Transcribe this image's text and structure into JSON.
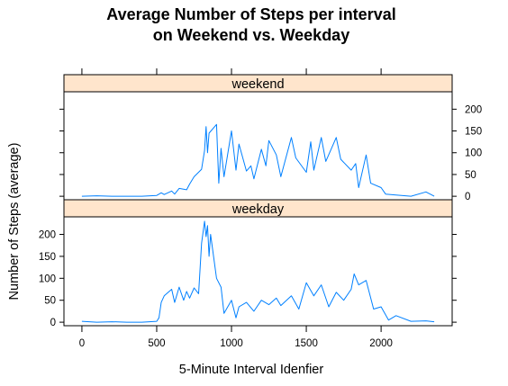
{
  "chart_data": {
    "type": "line",
    "title_line1": "Average Number of Steps per interval",
    "title_line2": "on Weekend vs. Weekday",
    "title": "Average Number of Steps per interval on Weekend vs. Weekday",
    "xlabel": "5-Minute Interval Idenfier",
    "ylabel": "Number of Steps (average)",
    "xlim": [
      -120,
      2475
    ],
    "ylim": [
      -8,
      240
    ],
    "x_ticks": [
      0,
      500,
      1000,
      1500,
      2000
    ],
    "y_ticks": [
      0,
      50,
      100,
      150,
      200
    ],
    "line_color": "#0080ff",
    "strip_color": "#ffe5cc",
    "panels": [
      {
        "strip_label": "weekend",
        "y_tick_side": "right",
        "x": [
          0,
          100,
          200,
          300,
          400,
          500,
          530,
          550,
          600,
          620,
          650,
          700,
          720,
          750,
          800,
          820,
          830,
          840,
          850,
          900,
          915,
          930,
          950,
          1000,
          1030,
          1050,
          1100,
          1130,
          1150,
          1200,
          1230,
          1250,
          1300,
          1330,
          1400,
          1430,
          1500,
          1530,
          1550,
          1600,
          1630,
          1700,
          1730,
          1800,
          1830,
          1850,
          1900,
          1930,
          2000,
          2030,
          2100,
          2200,
          2300,
          2355
        ],
        "y": [
          0,
          1,
          0,
          0,
          0,
          2,
          8,
          4,
          12,
          5,
          18,
          15,
          28,
          45,
          62,
          105,
          160,
          100,
          145,
          165,
          30,
          110,
          45,
          150,
          60,
          120,
          58,
          70,
          40,
          108,
          70,
          128,
          95,
          45,
          135,
          88,
          55,
          125,
          60,
          135,
          80,
          135,
          85,
          60,
          75,
          20,
          95,
          30,
          20,
          5,
          3,
          0,
          10,
          0
        ]
      },
      {
        "strip_label": "weekday",
        "y_tick_side": "left",
        "x": [
          0,
          100,
          200,
          300,
          400,
          500,
          515,
          530,
          550,
          600,
          620,
          650,
          680,
          700,
          720,
          750,
          780,
          800,
          820,
          830,
          840,
          850,
          860,
          900,
          930,
          950,
          1000,
          1030,
          1050,
          1100,
          1150,
          1200,
          1250,
          1300,
          1330,
          1400,
          1450,
          1500,
          1550,
          1600,
          1650,
          1700,
          1750,
          1800,
          1820,
          1850,
          1900,
          1950,
          2000,
          2050,
          2100,
          2200,
          2300,
          2355
        ],
        "y": [
          2,
          0,
          1,
          0,
          0,
          2,
          10,
          45,
          60,
          75,
          45,
          80,
          50,
          70,
          55,
          78,
          65,
          180,
          230,
          195,
          220,
          150,
          200,
          100,
          80,
          20,
          50,
          10,
          35,
          45,
          25,
          50,
          40,
          55,
          38,
          60,
          30,
          90,
          60,
          85,
          35,
          68,
          50,
          75,
          110,
          85,
          95,
          30,
          35,
          5,
          15,
          2,
          3,
          1
        ]
      }
    ]
  }
}
